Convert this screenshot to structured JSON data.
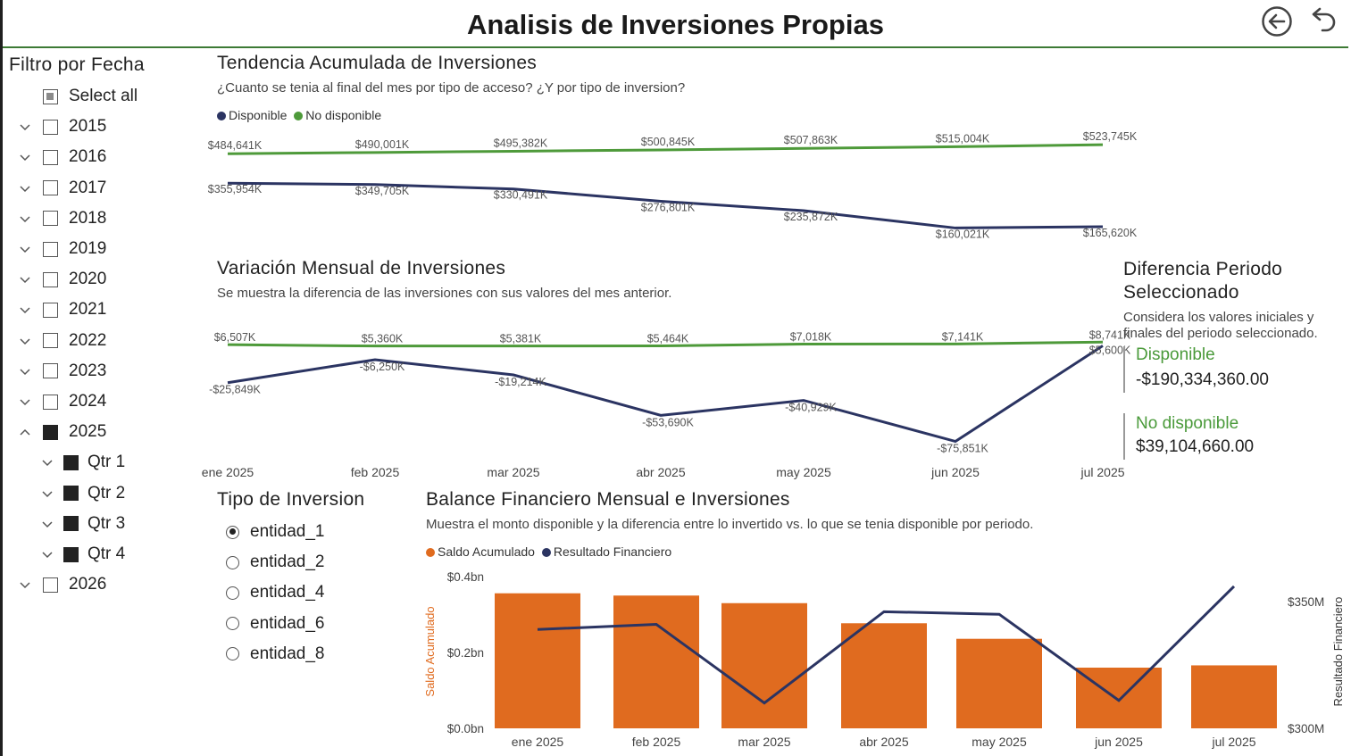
{
  "header": {
    "title": "Analisis de Inversiones Propias",
    "back_icon": "circle-arrow-left-icon",
    "undo_icon": "undo-arrow-icon"
  },
  "date_filter": {
    "title": "Filtro por Fecha",
    "select_all": "Select all",
    "years": [
      {
        "label": "2015",
        "expanded": false,
        "checked": false
      },
      {
        "label": "2016",
        "expanded": false,
        "checked": false
      },
      {
        "label": "2017",
        "expanded": false,
        "checked": false
      },
      {
        "label": "2018",
        "expanded": false,
        "checked": false
      },
      {
        "label": "2019",
        "expanded": false,
        "checked": false
      },
      {
        "label": "2020",
        "expanded": false,
        "checked": false
      },
      {
        "label": "2021",
        "expanded": false,
        "checked": false
      },
      {
        "label": "2022",
        "expanded": false,
        "checked": false
      },
      {
        "label": "2023",
        "expanded": false,
        "checked": false
      },
      {
        "label": "2024",
        "expanded": false,
        "checked": false
      },
      {
        "label": "2025",
        "expanded": true,
        "checked": true
      },
      {
        "label": "2026",
        "expanded": false,
        "checked": false
      }
    ],
    "quarters": [
      {
        "label": "Qtr 1",
        "checked": true
      },
      {
        "label": "Qtr 2",
        "checked": true
      },
      {
        "label": "Qtr 3",
        "checked": true
      },
      {
        "label": "Qtr 4",
        "checked": true
      }
    ]
  },
  "investment_type": {
    "title": "Tipo de Inversion",
    "options": [
      {
        "label": "entidad_1",
        "selected": true
      },
      {
        "label": "entidad_2",
        "selected": false
      },
      {
        "label": "entidad_4",
        "selected": false
      },
      {
        "label": "entidad_6",
        "selected": false
      },
      {
        "label": "entidad_8",
        "selected": false
      }
    ]
  },
  "period_difference": {
    "title_line1": "Diferencia Periodo",
    "title_line2": "Seleccionado",
    "subtitle_line1": "Considera los valores iniciales y",
    "subtitle_line2": "finales del periodo seleccionado.",
    "available_label": "Disponible",
    "available_value": "-$190,334,360.00",
    "unavailable_label": "No disponible",
    "unavailable_value": "$39,104,660.00"
  },
  "colors": {
    "navy": "#2b3462",
    "green": "#4e9a3a",
    "orange": "#e06b1f",
    "header_line": "#3d7a35"
  },
  "chart_data": [
    {
      "type": "line",
      "title": "Tendencia Acumulada de Inversiones",
      "subtitle": "¿Cuanto se tenia al final del mes por tipo de acceso? ¿Y por tipo de inversion?",
      "x": [
        "ene 2025",
        "feb 2025",
        "mar 2025",
        "abr 2025",
        "may 2025",
        "jun 2025",
        "jul 2025"
      ],
      "series": [
        {
          "name": "Disponible",
          "color": "#2b3462",
          "values": [
            355954,
            349705,
            330491,
            276801,
            235872,
            160021,
            165620
          ],
          "labels": [
            "$355,954K",
            "$349,705K",
            "$330,491K",
            "$276,801K",
            "$235,872K",
            "$160,021K",
            "$165,620K"
          ]
        },
        {
          "name": "No disponible",
          "color": "#4e9a3a",
          "values": [
            484641,
            490001,
            495382,
            500845,
            507863,
            515004,
            523745
          ],
          "labels": [
            "$484,641K",
            "$490,001K",
            "$495,382K",
            "$500,845K",
            "$507,863K",
            "$515,004K",
            "$523,745K"
          ]
        }
      ],
      "legend": "top-left"
    },
    {
      "type": "line",
      "title": "Variación Mensual de Inversiones",
      "subtitle": "Se muestra la diferencia de las inversiones con sus valores del mes anterior.",
      "x": [
        "ene 2025",
        "feb 2025",
        "mar 2025",
        "abr 2025",
        "may 2025",
        "jun 2025",
        "jul 2025"
      ],
      "series": [
        {
          "name": "Disponible",
          "color": "#2b3462",
          "values": [
            -25849,
            -6250,
            -19214,
            -53690,
            -40929,
            -75851,
            5600
          ],
          "labels": [
            "-$25,849K",
            "-$6,250K",
            "-$19,214K",
            "-$53,690K",
            "-$40,929K",
            "-$75,851K",
            "$5,600K"
          ]
        },
        {
          "name": "No disponible",
          "color": "#4e9a3a",
          "values": [
            6507,
            5360,
            5381,
            5464,
            7018,
            7141,
            8741
          ],
          "labels": [
            "$6,507K",
            "$5,360K",
            "$5,381K",
            "$5,464K",
            "$7,018K",
            "$7,141K",
            "$8,741K"
          ]
        }
      ]
    },
    {
      "type": "bar",
      "title": "Balance Financiero Mensual e Inversiones",
      "subtitle": "Muestra el monto disponible y la diferencia entre lo invertido vs. lo que se tenia disponible por periodo.",
      "categories": [
        "ene 2025",
        "feb 2025",
        "mar 2025",
        "abr 2025",
        "may 2025",
        "jun 2025",
        "jul 2025"
      ],
      "ylabel": "Saldo Acumulado",
      "y2label": "Resultado Financiero",
      "ylim": [
        0,
        0.4
      ],
      "y_ticks": [
        "$0.0bn",
        "$0.2bn",
        "$0.4bn"
      ],
      "y2lim": [
        300,
        350
      ],
      "y2_ticks": [
        "$300M",
        "$350M"
      ],
      "series": [
        {
          "name": "Saldo Acumulado",
          "kind": "bar",
          "axis": "left",
          "color": "#e06b1f",
          "values": [
            0.356,
            0.35,
            0.33,
            0.277,
            0.236,
            0.16,
            0.166
          ]
        },
        {
          "name": "Resultado Financiero",
          "kind": "line",
          "axis": "right",
          "color": "#2b3462",
          "values": [
            339,
            341,
            310,
            346,
            345,
            311,
            356
          ]
        }
      ],
      "legend": "top-left"
    }
  ]
}
